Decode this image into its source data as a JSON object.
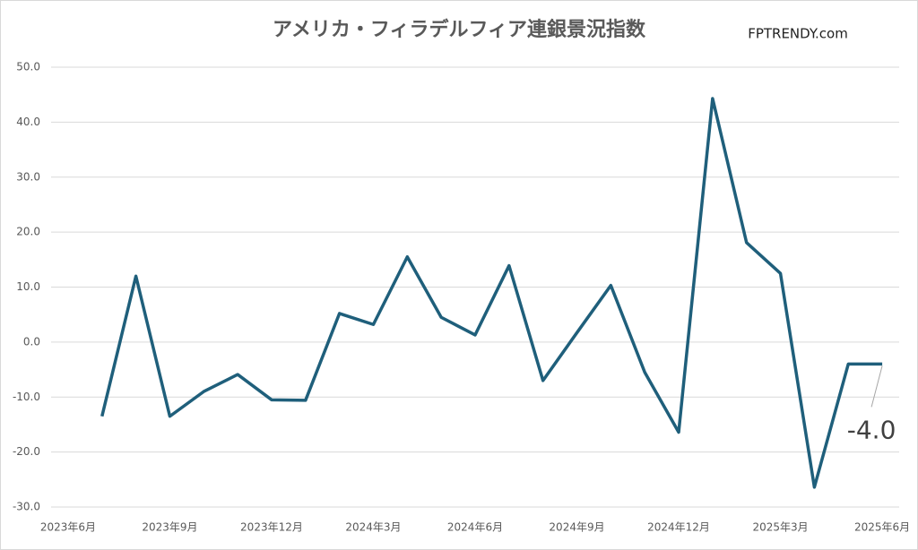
{
  "chart_data": {
    "type": "line",
    "title": "アメリカ・フィラデルフィア連銀景況指数",
    "watermark": "FPTRENDY.com",
    "categories": [
      "2023年6月",
      null,
      null,
      "2023年9月",
      null,
      null,
      "2023年12月",
      null,
      null,
      "2024年3月",
      null,
      null,
      "2024年6月",
      null,
      null,
      "2024年9月",
      null,
      null,
      "2024年12月",
      null,
      null,
      "2025年3月",
      null,
      null,
      "2025年6月"
    ],
    "series": [
      {
        "name": "フィラデルフィア連銀景況指数",
        "color": "#1f5f7b",
        "values": [
          null,
          -13.5,
          12.0,
          -13.5,
          -9.0,
          -5.9,
          -10.5,
          -10.6,
          5.2,
          3.2,
          15.5,
          4.5,
          1.3,
          13.9,
          -7.0,
          1.7,
          10.3,
          -5.5,
          -16.4,
          44.3,
          18.1,
          12.5,
          -26.4,
          -4.0,
          -4.0
        ],
        "value_labels": [
          null,
          null,
          null,
          null,
          null,
          null,
          null,
          null,
          null,
          null,
          null,
          null,
          null,
          null,
          null,
          null,
          null,
          null,
          null,
          null,
          null,
          null,
          null,
          null,
          "-4.0"
        ]
      }
    ],
    "ylim": [
      -30,
      50
    ],
    "yticks": [
      {
        "value": -30,
        "label": "-30.0"
      },
      {
        "value": -20,
        "label": "-20.0"
      },
      {
        "value": -10,
        "label": "-10.0"
      },
      {
        "value": 0,
        "label": "0.0"
      },
      {
        "value": 10,
        "label": "10.0"
      },
      {
        "value": 20,
        "label": "20.0"
      },
      {
        "value": 30,
        "label": "30.0"
      },
      {
        "value": 40,
        "label": "40.0"
      },
      {
        "value": 50,
        "label": "50.0"
      }
    ],
    "grid": true
  }
}
